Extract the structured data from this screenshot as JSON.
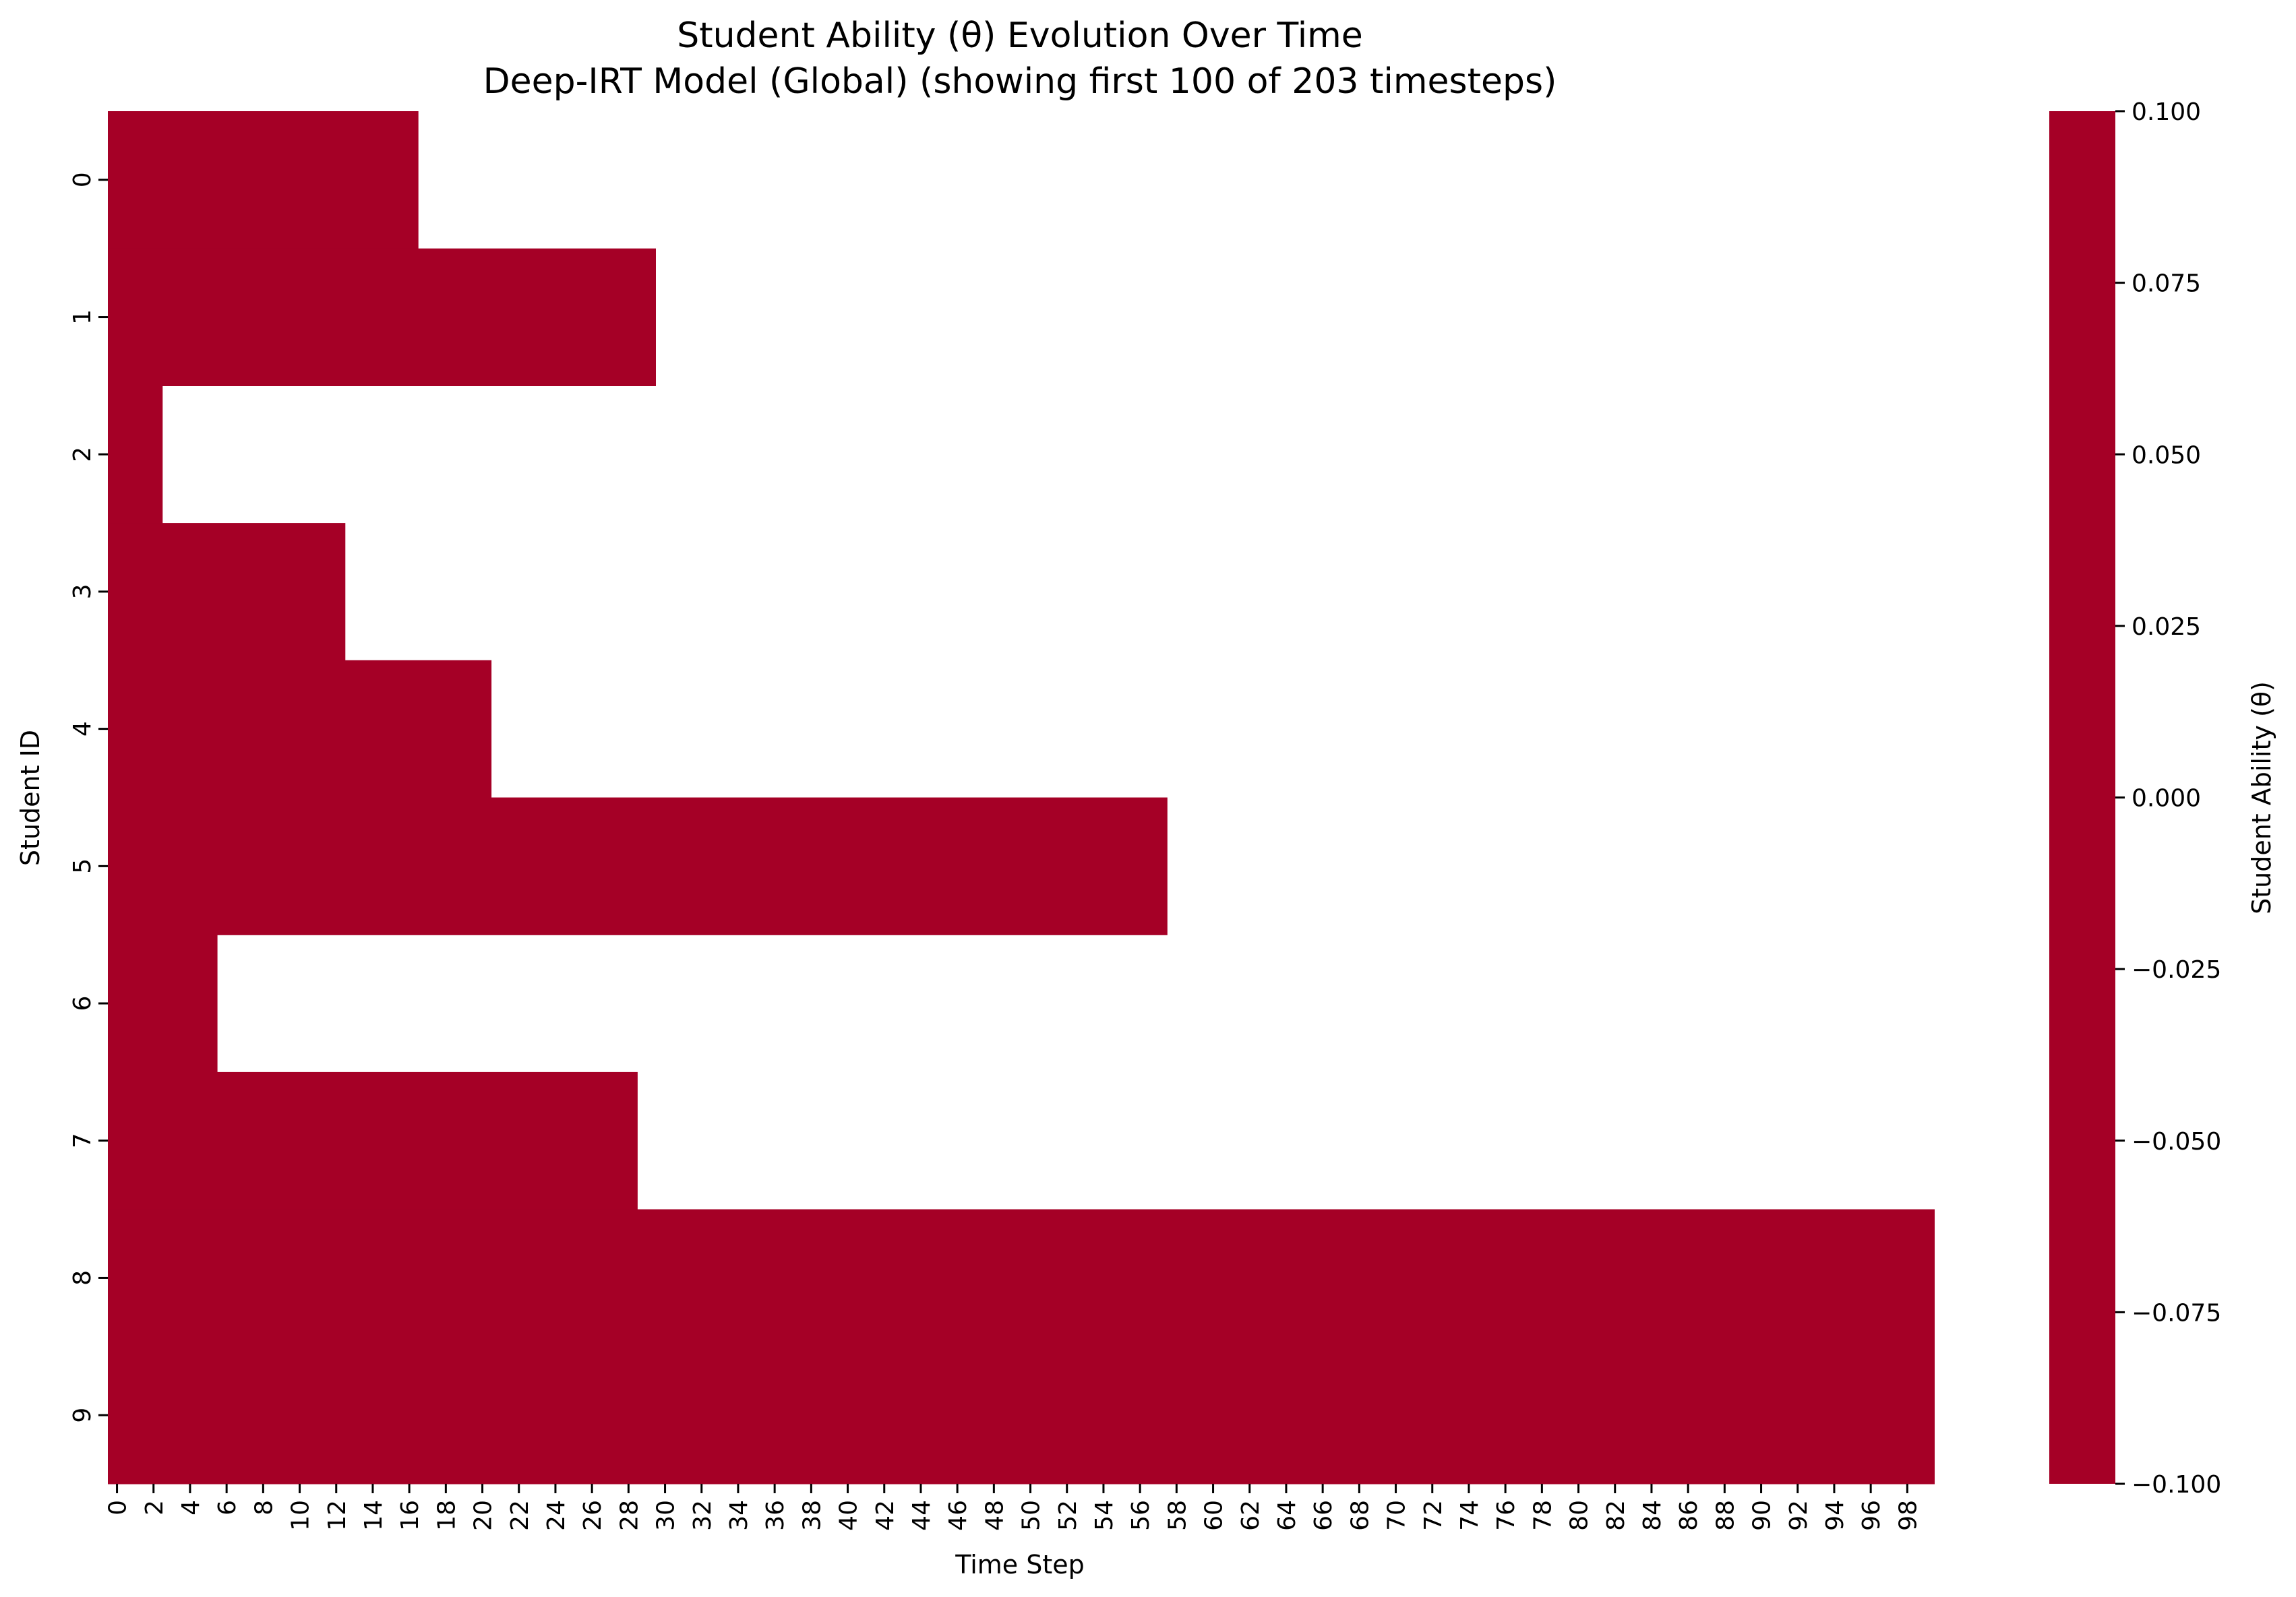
{
  "chart_data": {
    "type": "heatmap",
    "title": "Student Ability (θ) Evolution Over Time",
    "subtitle": "Deep-IRT Model (Global) (showing first 100 of 203 timesteps)",
    "xlabel": "Time Step",
    "ylabel": "Student ID",
    "colorbar_label": "Student Ability (θ)",
    "x_timesteps_shown": 100,
    "rows": [
      {
        "student": "0",
        "value": 0.0,
        "filled_timesteps": 17
      },
      {
        "student": "1",
        "value": 0.0,
        "filled_timesteps": 30
      },
      {
        "student": "2",
        "value": 0.0,
        "filled_timesteps": 3
      },
      {
        "student": "3",
        "value": 0.0,
        "filled_timesteps": 13
      },
      {
        "student": "4",
        "value": 0.0,
        "filled_timesteps": 21
      },
      {
        "student": "5",
        "value": 0.0,
        "filled_timesteps": 58
      },
      {
        "student": "6",
        "value": 0.0,
        "filled_timesteps": 6
      },
      {
        "student": "7",
        "value": 0.0,
        "filled_timesteps": 29
      },
      {
        "student": "8",
        "value": 0.0,
        "filled_timesteps": 100
      },
      {
        "student": "9",
        "value": 0.0,
        "filled_timesteps": 100
      }
    ],
    "x_tick_labels": [
      "0",
      "2",
      "4",
      "6",
      "8",
      "10",
      "12",
      "14",
      "16",
      "18",
      "20",
      "22",
      "24",
      "26",
      "28",
      "30",
      "32",
      "34",
      "36",
      "38",
      "40",
      "42",
      "44",
      "46",
      "48",
      "50",
      "52",
      "54",
      "56",
      "58",
      "60",
      "62",
      "64",
      "66",
      "68",
      "70",
      "72",
      "74",
      "76",
      "78",
      "80",
      "82",
      "84",
      "86",
      "88",
      "90",
      "92",
      "94",
      "96",
      "98"
    ],
    "colorbar_ticks": [
      "0.100",
      "0.075",
      "0.050",
      "0.025",
      "0.000",
      "−0.025",
      "−0.050",
      "−0.075",
      "−0.100"
    ],
    "colorbar_range": [
      -0.1,
      0.1
    ],
    "cell_color": "#a50026",
    "grid": false
  }
}
